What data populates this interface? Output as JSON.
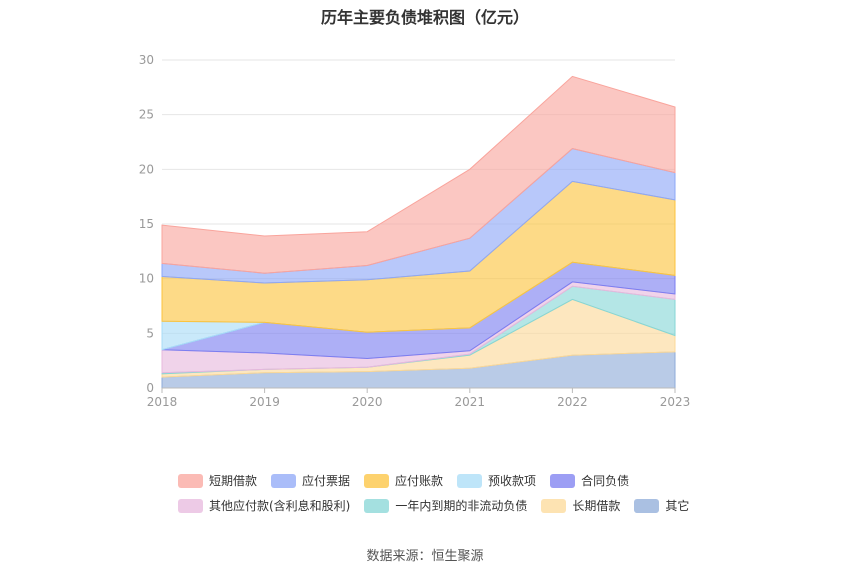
{
  "chart_data": {
    "type": "area",
    "stacked": true,
    "title": "历年主要负债堆积图（亿元）",
    "xlabel": "",
    "ylabel": "",
    "categories": [
      "2018",
      "2019",
      "2020",
      "2021",
      "2022",
      "2023"
    ],
    "ylim": [
      0,
      30
    ],
    "yticks": [
      0,
      5,
      10,
      15,
      20,
      25,
      30
    ],
    "grid": true,
    "legend_position": "bottom",
    "series": [
      {
        "name": "其它",
        "color": "#8eabd8",
        "values": [
          1.0,
          1.4,
          1.5,
          1.8,
          3.0,
          3.3
        ]
      },
      {
        "name": "长期借款",
        "color": "#fcd998",
        "values": [
          0.3,
          0.3,
          0.4,
          1.2,
          5.1,
          1.5
        ]
      },
      {
        "name": "一年内到期的非流动负债",
        "color": "#86d6d6",
        "values": [
          0.1,
          0.0,
          0.0,
          0.1,
          1.2,
          3.3
        ]
      },
      {
        "name": "其他应付款(含利息和股利)",
        "color": "#e7b8dd",
        "values": [
          2.1,
          1.5,
          0.8,
          0.3,
          0.4,
          0.5
        ]
      },
      {
        "name": "合同负债",
        "color": "#7b7ef0",
        "values": [
          0.0,
          2.8,
          2.4,
          2.1,
          1.8,
          1.7
        ]
      },
      {
        "name": "预收款项",
        "color": "#a8dcf7",
        "values": [
          2.6,
          0.0,
          0.0,
          0.0,
          0.0,
          0.0
        ]
      },
      {
        "name": "应付账款",
        "color": "#fcc33e",
        "values": [
          4.1,
          3.6,
          4.8,
          5.2,
          7.4,
          6.9
        ]
      },
      {
        "name": "应付票据",
        "color": "#8da7f7",
        "values": [
          1.2,
          0.9,
          1.3,
          3.0,
          3.0,
          2.5
        ]
      },
      {
        "name": "短期借款",
        "color": "#f9a49c",
        "values": [
          3.5,
          3.4,
          3.1,
          6.3,
          6.6,
          6.0
        ]
      }
    ],
    "legend_order": [
      "短期借款",
      "应付票据",
      "应付账款",
      "预收款项",
      "合同负债",
      "其他应付款(含利息和股利)",
      "一年内到期的非流动负债",
      "长期借款",
      "其它"
    ],
    "source": "数据来源：恒生聚源"
  }
}
